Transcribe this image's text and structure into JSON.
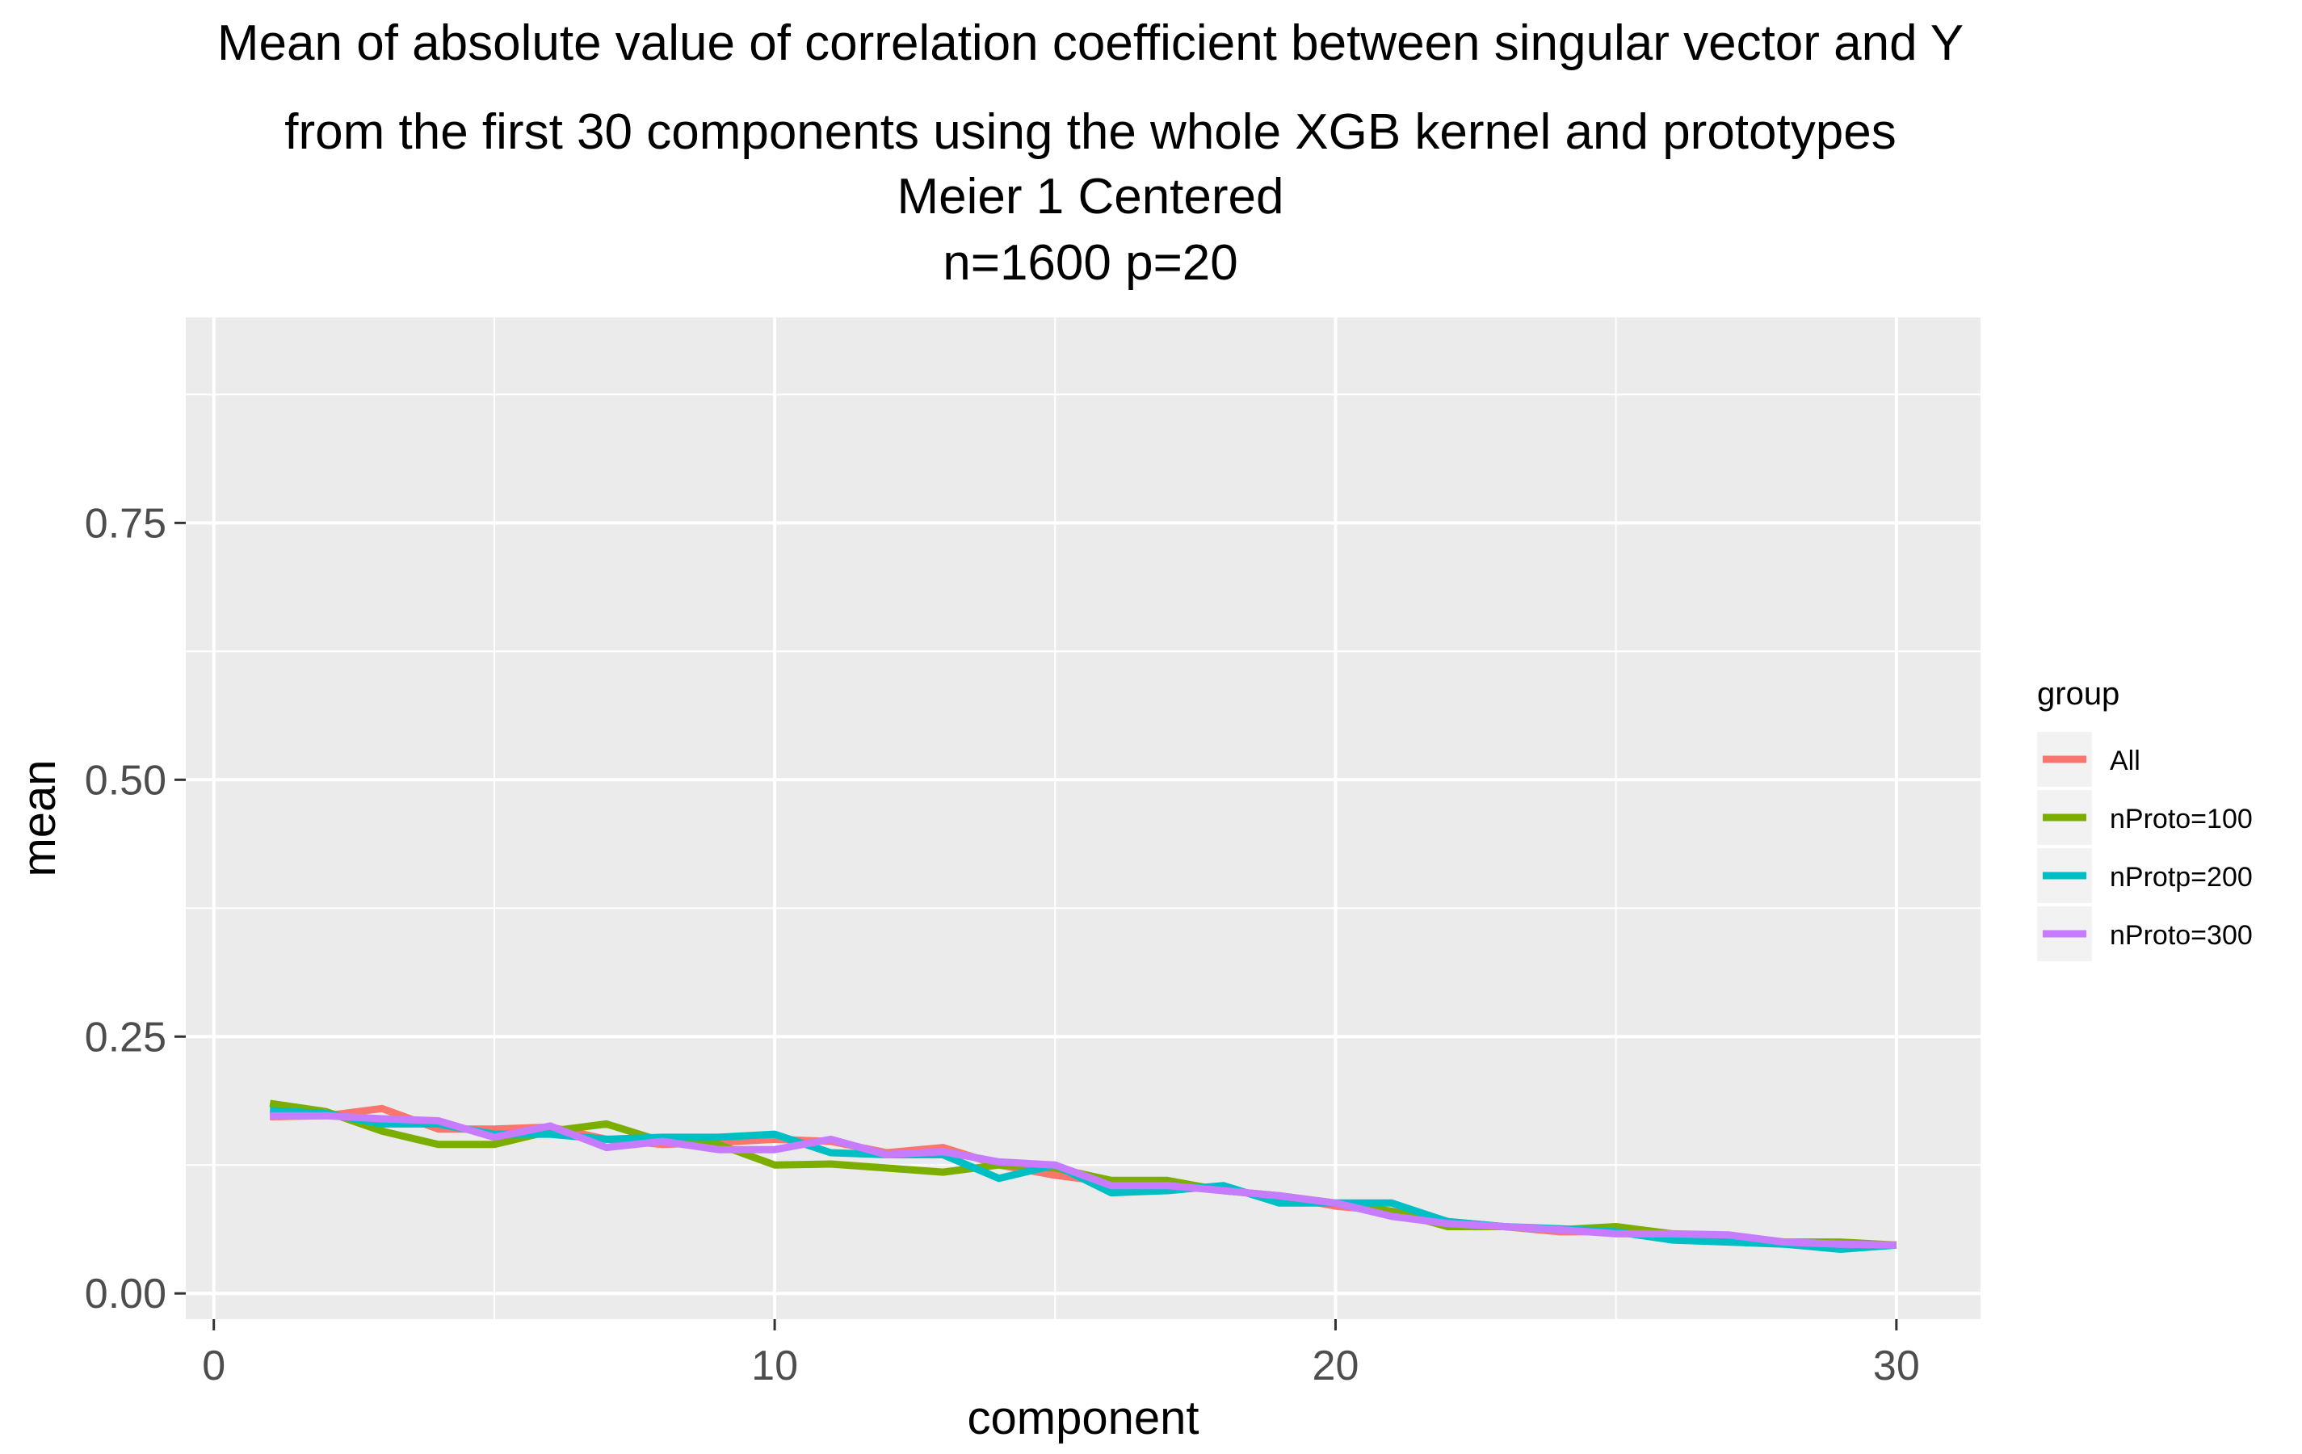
{
  "title_lines": [
    "Mean of absolute value of correlation coefficient between singular vector and Y",
    "from the first 30 components using the whole XGB kernel and prototypes",
    "Meier 1 Centered",
    "n=1600 p=20"
  ],
  "chart_data": {
    "type": "line",
    "xlabel": "component",
    "ylabel": "mean",
    "xlim": [
      -0.5,
      31.5
    ],
    "ylim": [
      -0.025,
      0.95
    ],
    "x_ticks": [
      0,
      10,
      20,
      30
    ],
    "x_tick_labels": [
      "0",
      "10",
      "20",
      "30"
    ],
    "y_ticks": [
      0.0,
      0.25,
      0.5,
      0.75
    ],
    "y_tick_labels": [
      "0.00",
      "0.25",
      "0.50",
      "0.75"
    ],
    "grid": true,
    "legend_title": "group",
    "legend_position": "right",
    "x": [
      1,
      2,
      3,
      4,
      5,
      6,
      7,
      8,
      9,
      10,
      11,
      12,
      13,
      14,
      15,
      16,
      17,
      18,
      19,
      20,
      21,
      22,
      23,
      24,
      25,
      26,
      27,
      28,
      29,
      30
    ],
    "series": [
      {
        "name": "All",
        "color": "#F8766D",
        "values": [
          0.172,
          0.173,
          0.18,
          0.16,
          0.16,
          0.162,
          0.15,
          0.145,
          0.147,
          0.15,
          0.148,
          0.137,
          0.142,
          0.125,
          0.115,
          0.108,
          0.107,
          0.1,
          0.095,
          0.085,
          0.08,
          0.07,
          0.065,
          0.06,
          0.06,
          0.055,
          0.055,
          0.05,
          0.048,
          0.047
        ]
      },
      {
        "name": "nProto=100",
        "color": "#7CAE00",
        "values": [
          0.185,
          0.177,
          0.158,
          0.145,
          0.145,
          0.158,
          0.165,
          0.148,
          0.145,
          0.125,
          0.126,
          0.122,
          0.118,
          0.125,
          0.122,
          0.11,
          0.11,
          0.1,
          0.095,
          0.088,
          0.08,
          0.065,
          0.065,
          0.062,
          0.065,
          0.058,
          0.055,
          0.05,
          0.05,
          0.047
        ]
      },
      {
        "name": "nProtp=200",
        "color": "#00BFC4",
        "values": [
          0.178,
          0.175,
          0.165,
          0.165,
          0.155,
          0.155,
          0.15,
          0.152,
          0.152,
          0.155,
          0.137,
          0.135,
          0.135,
          0.112,
          0.125,
          0.098,
          0.1,
          0.105,
          0.088,
          0.088,
          0.088,
          0.07,
          0.065,
          0.063,
          0.06,
          0.052,
          0.05,
          0.048,
          0.043,
          0.047
        ]
      },
      {
        "name": "nProto=300",
        "color": "#C77CFF",
        "values": [
          0.173,
          0.173,
          0.17,
          0.168,
          0.152,
          0.163,
          0.142,
          0.148,
          0.14,
          0.14,
          0.15,
          0.135,
          0.138,
          0.128,
          0.125,
          0.105,
          0.105,
          0.1,
          0.095,
          0.088,
          0.075,
          0.068,
          0.065,
          0.062,
          0.058,
          0.058,
          0.057,
          0.05,
          0.048,
          0.047
        ]
      }
    ]
  }
}
